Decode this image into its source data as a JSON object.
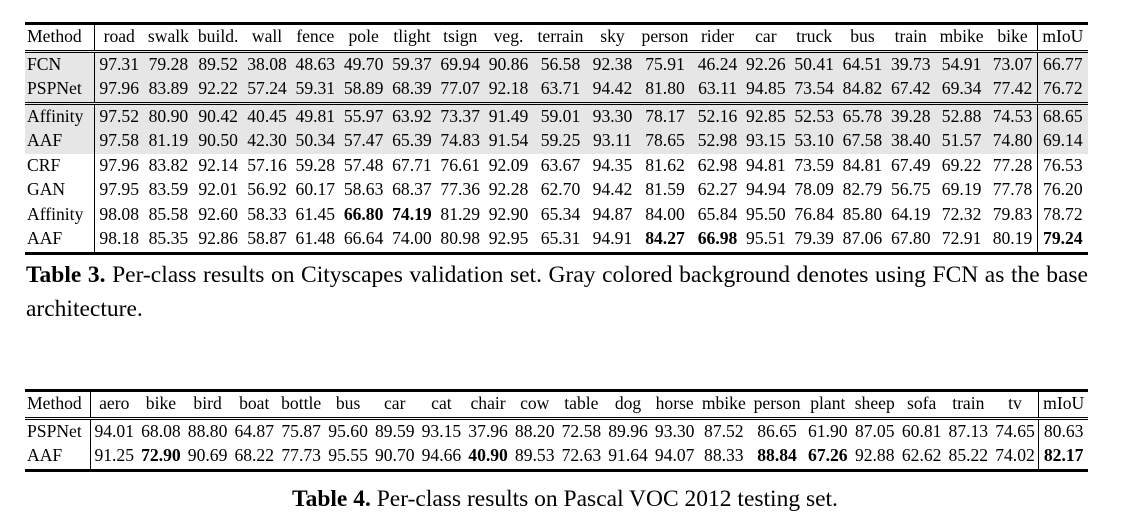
{
  "table3": {
    "columns": [
      "Method",
      "road",
      "swalk",
      "build.",
      "wall",
      "fence",
      "pole",
      "tlight",
      "tsign",
      "veg.",
      "terrain",
      "sky",
      "person",
      "rider",
      "car",
      "truck",
      "bus",
      "train",
      "mbike",
      "bike",
      "mIoU"
    ],
    "groups": [
      {
        "shaded": true,
        "rows": [
          {
            "method": "FCN",
            "values": [
              "97.31",
              "79.28",
              "89.52",
              "38.08",
              "48.63",
              "49.70",
              "59.37",
              "69.94",
              "90.86",
              "56.58",
              "92.38",
              "75.91",
              "46.24",
              "92.26",
              "50.41",
              "64.51",
              "39.73",
              "54.91",
              "73.07",
              "66.77"
            ],
            "bold": []
          },
          {
            "method": "PSPNet",
            "values": [
              "97.96",
              "83.89",
              "92.22",
              "57.24",
              "59.31",
              "58.89",
              "68.39",
              "77.07",
              "92.18",
              "63.71",
              "94.42",
              "81.80",
              "63.11",
              "94.85",
              "73.54",
              "84.82",
              "67.42",
              "69.34",
              "77.42",
              "76.72"
            ],
            "bold": []
          }
        ]
      },
      {
        "shaded": false,
        "rows": [
          {
            "method": "Affinity",
            "values": [
              "97.52",
              "80.90",
              "90.42",
              "40.45",
              "49.81",
              "55.97",
              "63.92",
              "73.37",
              "91.49",
              "59.01",
              "93.30",
              "78.17",
              "52.16",
              "92.85",
              "52.53",
              "65.78",
              "39.28",
              "52.88",
              "74.53",
              "68.65"
            ],
            "bold": [],
            "shaded": true
          },
          {
            "method": "AAF",
            "values": [
              "97.58",
              "81.19",
              "90.50",
              "42.30",
              "50.34",
              "57.47",
              "65.39",
              "74.83",
              "91.54",
              "59.25",
              "93.11",
              "78.65",
              "52.98",
              "93.15",
              "53.10",
              "67.58",
              "38.40",
              "51.57",
              "74.80",
              "69.14"
            ],
            "bold": [],
            "shaded": true
          },
          {
            "method": "CRF",
            "values": [
              "97.96",
              "83.82",
              "92.14",
              "57.16",
              "59.28",
              "57.48",
              "67.71",
              "76.61",
              "92.09",
              "63.67",
              "94.35",
              "81.62",
              "62.98",
              "94.81",
              "73.59",
              "84.81",
              "67.49",
              "69.22",
              "77.28",
              "76.53"
            ],
            "bold": [],
            "shaded": false
          },
          {
            "method": "GAN",
            "values": [
              "97.95",
              "83.59",
              "92.01",
              "56.92",
              "60.17",
              "58.63",
              "68.37",
              "77.36",
              "92.28",
              "62.70",
              "94.42",
              "81.59",
              "62.27",
              "94.94",
              "78.09",
              "82.79",
              "56.75",
              "69.19",
              "77.78",
              "76.20"
            ],
            "bold": [],
            "shaded": false
          },
          {
            "method": "Affinity",
            "values": [
              "98.08",
              "85.58",
              "92.60",
              "58.33",
              "61.45",
              "66.80",
              "74.19",
              "81.29",
              "92.90",
              "65.34",
              "94.87",
              "84.00",
              "65.84",
              "95.50",
              "76.84",
              "85.80",
              "64.19",
              "72.32",
              "79.83",
              "78.72"
            ],
            "bold": [
              5,
              6
            ],
            "shaded": false
          },
          {
            "method": "AAF",
            "values": [
              "98.18",
              "85.35",
              "92.86",
              "58.87",
              "61.48",
              "66.64",
              "74.00",
              "80.98",
              "92.95",
              "65.31",
              "94.91",
              "84.27",
              "66.98",
              "95.51",
              "79.39",
              "87.06",
              "67.80",
              "72.91",
              "80.19",
              "79.24"
            ],
            "bold": [
              11,
              12,
              19
            ],
            "shaded": false
          }
        ]
      }
    ],
    "caption_label": "Table 3.",
    "caption_text": "Per-class results on Cityscapes validation set. Gray colored background denotes using FCN as the base architecture."
  },
  "table4": {
    "columns": [
      "Method",
      "aero",
      "bike",
      "bird",
      "boat",
      "bottle",
      "bus",
      "car",
      "cat",
      "chair",
      "cow",
      "table",
      "dog",
      "horse",
      "mbike",
      "person",
      "plant",
      "sheep",
      "sofa",
      "train",
      "tv",
      "mIoU"
    ],
    "rows": [
      {
        "method": "PSPNet",
        "values": [
          "94.01",
          "68.08",
          "88.80",
          "64.87",
          "75.87",
          "95.60",
          "89.59",
          "93.15",
          "37.96",
          "88.20",
          "72.58",
          "89.96",
          "93.30",
          "87.52",
          "86.65",
          "61.90",
          "87.05",
          "60.81",
          "87.13",
          "74.65",
          "80.63"
        ],
        "bold": []
      },
      {
        "method": "AAF",
        "values": [
          "91.25",
          "72.90",
          "90.69",
          "68.22",
          "77.73",
          "95.55",
          "90.70",
          "94.66",
          "40.90",
          "89.53",
          "72.63",
          "91.64",
          "94.07",
          "88.33",
          "88.84",
          "67.26",
          "92.88",
          "62.62",
          "85.22",
          "74.02",
          "82.17"
        ],
        "bold": [
          1,
          8,
          14,
          15,
          20
        ]
      }
    ],
    "caption_label": "Table 4.",
    "caption_text": "Per-class results on Pascal VOC 2012 testing set."
  },
  "colors": {
    "shade": "#e6e6e6",
    "text": "#000000"
  }
}
